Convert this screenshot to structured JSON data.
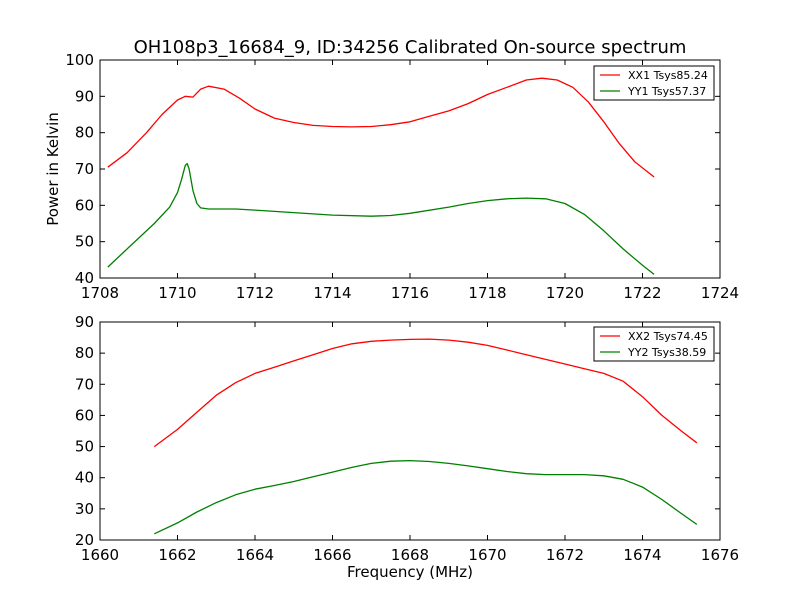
{
  "chart_data": [
    {
      "type": "line",
      "title": "OH108p3_16684_9, ID:34256 Calibrated On-source spectrum",
      "xlabel": "",
      "ylabel": "Power in Kelvin",
      "xlim": [
        1708,
        1724
      ],
      "ylim": [
        40,
        100
      ],
      "xticks": [
        1708,
        1710,
        1712,
        1714,
        1716,
        1718,
        1720,
        1722,
        1724
      ],
      "yticks": [
        40,
        50,
        60,
        70,
        80,
        90,
        100
      ],
      "grid": false,
      "legend": "top-right",
      "series": [
        {
          "name": "XX1 Tsys85.24",
          "color": "#ff0000",
          "x": [
            1708.2,
            1708.7,
            1709.2,
            1709.6,
            1710.0,
            1710.2,
            1710.4,
            1710.6,
            1710.8,
            1711.2,
            1711.6,
            1712.0,
            1712.5,
            1713.0,
            1713.5,
            1714.0,
            1714.5,
            1715.0,
            1715.5,
            1716.0,
            1716.5,
            1717.0,
            1717.5,
            1718.0,
            1718.5,
            1719.0,
            1719.4,
            1719.8,
            1720.2,
            1720.6,
            1721.0,
            1721.4,
            1721.8,
            1722.3
          ],
          "y": [
            70.5,
            74.5,
            80.0,
            85.0,
            89.0,
            90.0,
            89.8,
            92.0,
            92.8,
            92.0,
            89.5,
            86.5,
            84.0,
            82.8,
            82.0,
            81.7,
            81.6,
            81.7,
            82.2,
            83.0,
            84.5,
            86.0,
            88.0,
            90.5,
            92.5,
            94.5,
            95.0,
            94.5,
            92.5,
            88.5,
            83.0,
            77.0,
            72.0,
            67.8
          ]
        },
        {
          "name": "YY1 Tsys57.37",
          "color": "#008000",
          "x": [
            1708.2,
            1708.6,
            1709.0,
            1709.4,
            1709.8,
            1710.0,
            1710.1,
            1710.2,
            1710.25,
            1710.3,
            1710.4,
            1710.5,
            1710.6,
            1710.8,
            1711.5,
            1712.0,
            1713.0,
            1714.0,
            1715.0,
            1715.5,
            1716.0,
            1717.0,
            1717.5,
            1718.0,
            1718.5,
            1719.0,
            1719.5,
            1720.0,
            1720.5,
            1721.0,
            1721.5,
            1722.0,
            1722.3
          ],
          "y": [
            43.0,
            47.0,
            51.0,
            55.0,
            59.5,
            63.5,
            67.0,
            71.0,
            71.5,
            70.0,
            64.0,
            60.5,
            59.3,
            59.0,
            59.0,
            58.7,
            58.0,
            57.3,
            57.0,
            57.2,
            57.8,
            59.5,
            60.5,
            61.3,
            61.8,
            62.0,
            61.8,
            60.5,
            57.5,
            53.0,
            48.0,
            43.5,
            41.0
          ]
        }
      ]
    },
    {
      "type": "line",
      "title": "",
      "xlabel": "Frequency (MHz)",
      "ylabel": "",
      "xlim": [
        1660,
        1676
      ],
      "ylim": [
        20,
        90
      ],
      "xticks": [
        1660,
        1662,
        1664,
        1666,
        1668,
        1670,
        1672,
        1674,
        1676
      ],
      "yticks": [
        20,
        30,
        40,
        50,
        60,
        70,
        80,
        90
      ],
      "grid": false,
      "legend": "top-right",
      "series": [
        {
          "name": "XX2 Tsys74.45",
          "color": "#ff0000",
          "x": [
            1661.4,
            1662.0,
            1662.5,
            1663.0,
            1663.5,
            1664.0,
            1664.5,
            1665.0,
            1665.5,
            1666.0,
            1666.5,
            1667.0,
            1667.5,
            1668.0,
            1668.5,
            1669.0,
            1669.5,
            1670.0,
            1670.5,
            1671.0,
            1671.5,
            1672.0,
            1672.5,
            1673.0,
            1673.5,
            1674.0,
            1674.5,
            1675.0,
            1675.4
          ],
          "y": [
            50.0,
            55.5,
            61.0,
            66.5,
            70.5,
            73.5,
            75.5,
            77.5,
            79.5,
            81.5,
            83.0,
            83.8,
            84.2,
            84.4,
            84.5,
            84.2,
            83.5,
            82.5,
            81.0,
            79.5,
            78.0,
            76.5,
            75.0,
            73.5,
            71.0,
            66.0,
            60.0,
            55.0,
            51.2
          ]
        },
        {
          "name": "YY2 Tsys38.59",
          "color": "#008000",
          "x": [
            1661.4,
            1662.0,
            1662.5,
            1663.0,
            1663.5,
            1664.0,
            1664.5,
            1665.0,
            1665.5,
            1666.0,
            1666.5,
            1667.0,
            1667.5,
            1668.0,
            1668.5,
            1669.0,
            1669.5,
            1670.0,
            1670.5,
            1671.0,
            1671.5,
            1672.0,
            1672.5,
            1673.0,
            1673.5,
            1674.0,
            1674.5,
            1675.0,
            1675.4
          ],
          "y": [
            22.0,
            25.5,
            29.0,
            32.0,
            34.5,
            36.3,
            37.5,
            38.8,
            40.3,
            41.8,
            43.3,
            44.6,
            45.3,
            45.5,
            45.2,
            44.6,
            43.8,
            42.9,
            42.0,
            41.3,
            41.0,
            41.0,
            41.0,
            40.6,
            39.5,
            37.0,
            33.0,
            28.5,
            25.0
          ]
        }
      ]
    }
  ]
}
